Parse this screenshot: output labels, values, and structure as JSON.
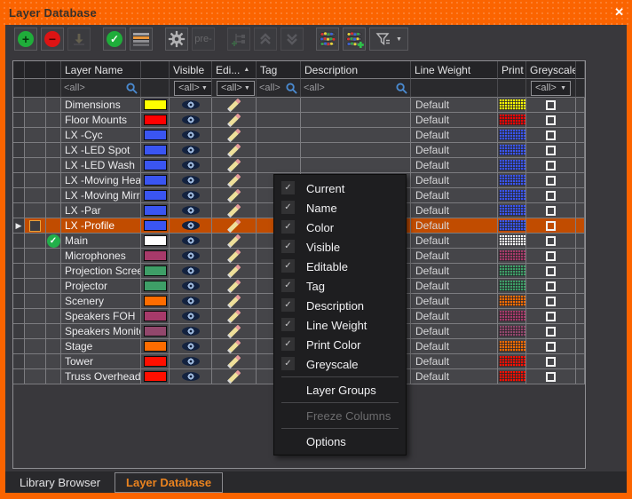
{
  "window": {
    "title": "Layer Database",
    "close_glyph": "✕"
  },
  "colors": {
    "accent": "#fb6400",
    "selection": "#c14c00",
    "panel_bg": "#39383c",
    "row_bg": "#454549",
    "menu_bg": "#1e1e20",
    "active_tab_text": "#ea831f",
    "search_icon_blue": "#4a8ad0",
    "current_check_green": "#22b04a"
  },
  "icons": {
    "row_marker": "▶",
    "sort_asc": "▲",
    "caret_down": "▼",
    "check": "✓"
  },
  "toolbar": {
    "pre_label": "pre-",
    "buttons": [
      {
        "name": "add-layer",
        "icon": "plus-circle-icon",
        "enabled": true
      },
      {
        "name": "remove-layer",
        "icon": "minus-circle-icon",
        "enabled": true
      },
      {
        "name": "import-layer",
        "icon": "arrow-down-stack-icon",
        "enabled": false
      },
      {
        "name": "activate-layer",
        "icon": "check-circle-icon",
        "enabled": true
      },
      {
        "name": "layer-order",
        "icon": "layer-stripes-icon",
        "enabled": true
      },
      {
        "name": "settings",
        "icon": "gear-icon",
        "enabled": true
      },
      {
        "name": "preferences",
        "label": "pre-",
        "enabled": false
      },
      {
        "name": "new-layer-tree",
        "icon": "tree-add-icon",
        "enabled": false
      },
      {
        "name": "move-up",
        "icon": "chevrons-up-icon",
        "enabled": false
      },
      {
        "name": "move-down",
        "icon": "chevrons-down-icon",
        "enabled": false
      },
      {
        "name": "layer-stack",
        "icon": "layers-colored-icon",
        "enabled": true
      },
      {
        "name": "layer-stack-add",
        "icon": "layers-add-icon",
        "enabled": true
      },
      {
        "name": "filter",
        "icon": "filter-icon",
        "enabled": true,
        "has_dropdown": true
      }
    ]
  },
  "table": {
    "columns": {
      "layer_name": "Layer Name",
      "visible": "Visible",
      "editable": "Edi...",
      "tag": "Tag",
      "description": "Description",
      "line_weight": "Line Weight",
      "print": "Print",
      "greyscale": "Greyscale"
    },
    "filter_all": "<all>",
    "rows": [
      {
        "name": "Dimensions",
        "color": "#ffff00",
        "line_weight": "Default",
        "selected": false,
        "current": false
      },
      {
        "name": "Floor Mounts",
        "color": "#ff0000",
        "line_weight": "Default",
        "selected": false,
        "current": false
      },
      {
        "name": "LX -Cyc",
        "color": "#3a55f2",
        "line_weight": "Default",
        "selected": false,
        "current": false
      },
      {
        "name": "LX -LED Spot",
        "color": "#3a55f2",
        "line_weight": "Default",
        "selected": false,
        "current": false
      },
      {
        "name": "LX -LED Wash",
        "color": "#3a55f2",
        "line_weight": "Default",
        "selected": false,
        "current": false
      },
      {
        "name": "LX -Moving Head",
        "color": "#3a55f2",
        "line_weight": "Default",
        "selected": false,
        "current": false
      },
      {
        "name": "LX -Moving Mirror",
        "color": "#3a55f2",
        "line_weight": "Default",
        "selected": false,
        "current": false
      },
      {
        "name": "LX -Par",
        "color": "#3a55f2",
        "line_weight": "Default",
        "selected": false,
        "current": false
      },
      {
        "name": "LX -Profile",
        "color": "#3a55f2",
        "line_weight": "Default",
        "selected": true,
        "current": false
      },
      {
        "name": "Main",
        "color": "#ffffff",
        "line_weight": "Default",
        "selected": false,
        "current": true
      },
      {
        "name": "Microphones",
        "color": "#a73a6a",
        "line_weight": "Default",
        "selected": false,
        "current": false
      },
      {
        "name": "Projection Scree...",
        "color": "#3e9e67",
        "line_weight": "Default",
        "selected": false,
        "current": false
      },
      {
        "name": "Projector",
        "color": "#3e9e67",
        "line_weight": "Default",
        "selected": false,
        "current": false
      },
      {
        "name": "Scenery",
        "color": "#fe6c00",
        "line_weight": "Default",
        "selected": false,
        "current": false
      },
      {
        "name": "Speakers FOH",
        "color": "#a73a6a",
        "line_weight": "Default",
        "selected": false,
        "current": false
      },
      {
        "name": "Speakers Monitor",
        "color": "#92476c",
        "line_weight": "Default",
        "selected": false,
        "current": false
      },
      {
        "name": "Stage",
        "color": "#fe6c00",
        "line_weight": "Default",
        "selected": false,
        "current": false
      },
      {
        "name": "Tower",
        "color": "#ff0f00",
        "line_weight": "Default",
        "selected": false,
        "current": false
      },
      {
        "name": "Truss Overhead",
        "color": "#ff0f00",
        "line_weight": "Default",
        "selected": false,
        "current": false
      }
    ]
  },
  "context_menu": {
    "items": [
      {
        "label": "Current",
        "checked": true
      },
      {
        "label": "Name",
        "checked": true
      },
      {
        "label": "Color",
        "checked": true
      },
      {
        "label": "Visible",
        "checked": true
      },
      {
        "label": "Editable",
        "checked": true
      },
      {
        "label": "Tag",
        "checked": true
      },
      {
        "label": "Description",
        "checked": true
      },
      {
        "label": "Line Weight",
        "checked": true
      },
      {
        "label": "Print Color",
        "checked": true
      },
      {
        "label": "Greyscale",
        "checked": true
      },
      {
        "separator": true
      },
      {
        "label": "Layer Groups",
        "checked": false
      },
      {
        "separator": true
      },
      {
        "label": "Freeze Columns",
        "checked": false,
        "disabled": true
      },
      {
        "separator": true
      },
      {
        "label": "Options",
        "checked": false
      }
    ]
  },
  "tabs": [
    {
      "label": "Library Browser",
      "active": false
    },
    {
      "label": "Layer Database",
      "active": true
    }
  ]
}
